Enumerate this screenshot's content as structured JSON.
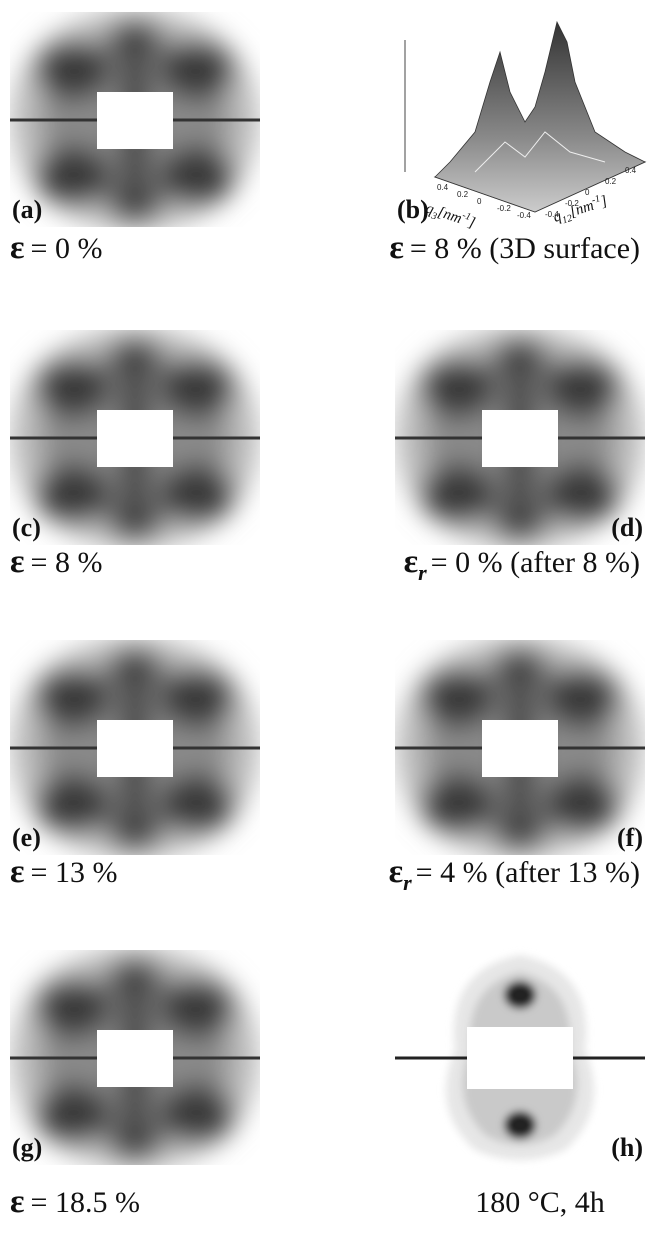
{
  "panels": [
    {
      "label": "(a)",
      "kind": "saxs",
      "caption": {
        "symbol": "ε",
        "text": "= 0 %"
      }
    },
    {
      "label": "(b)",
      "kind": "surface",
      "caption": {
        "symbol": "ε",
        "text": "= 8 % (3D surface)"
      },
      "x_axis": {
        "symbol": "q",
        "sub": "3",
        "unit": "[nm",
        "exp": "-1",
        "close": "]"
      },
      "y_axis": {
        "symbol": "q",
        "sub": "12",
        "unit": "[nm",
        "exp": "-1",
        "close": "]"
      },
      "ticks": [
        "0.4",
        "0.2",
        "0",
        "-0.2",
        "-0.4"
      ]
    },
    {
      "label": "(c)",
      "kind": "saxs",
      "caption": {
        "symbol": "ε",
        "text": "= 8 %"
      }
    },
    {
      "label": "(d)",
      "kind": "saxs",
      "caption": {
        "symbol": "ε",
        "sub": "r",
        "text": "= 0 % (after 8 %)"
      }
    },
    {
      "label": "(e)",
      "kind": "saxs",
      "caption": {
        "symbol": "ε",
        "text": "= 13 %"
      }
    },
    {
      "label": "(f)",
      "kind": "saxs",
      "caption": {
        "symbol": "ε",
        "sub": "r",
        "text": "= 4 % (after 13 %)"
      }
    },
    {
      "label": "(g)",
      "kind": "saxs",
      "caption": {
        "symbol": "ε",
        "text": "= 18.5 %"
      }
    },
    {
      "label": "(h)",
      "kind": "contour",
      "caption": {
        "text": "180 °C, 4h"
      }
    }
  ]
}
